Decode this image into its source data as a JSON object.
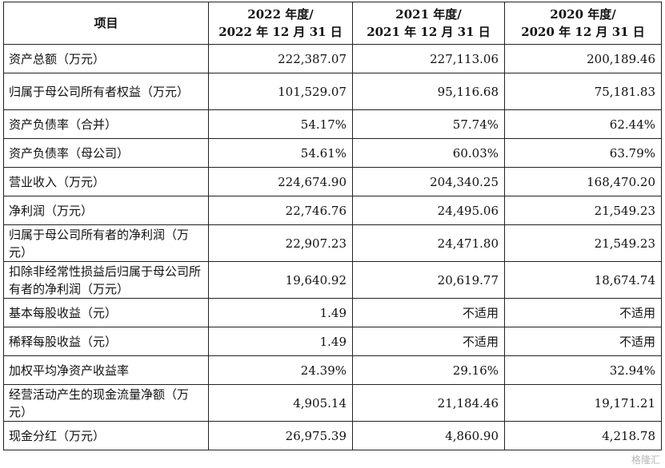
{
  "header": {
    "item": "项目",
    "y2022_line1": "2022 年度/",
    "y2022_line2": "2022 年 12 月 31 日",
    "y2021_line1": "2021 年度/",
    "y2021_line2": "2021 年 12 月 31 日",
    "y2020_line1": "2020 年度/",
    "y2020_line2": "2020 年 12 月 31 日"
  },
  "rows": [
    {
      "label": "资产总额（万元）",
      "v2022": "222,387.07",
      "v2021": "227,113.06",
      "v2020": "200,189.46"
    },
    {
      "label": "归属于母公司所有者权益（万元）",
      "v2022": "101,529.07",
      "v2021": "95,116.68",
      "v2020": "75,181.83"
    },
    {
      "label": "资产负债率（合并）",
      "v2022": "54.17%",
      "v2021": "57.74%",
      "v2020": "62.44%"
    },
    {
      "label": "资产负债率（母公司）",
      "v2022": "54.61%",
      "v2021": "60.03%",
      "v2020": "63.79%"
    },
    {
      "label": "营业收入（万元）",
      "v2022": "224,674.90",
      "v2021": "204,340.25",
      "v2020": "168,470.20"
    },
    {
      "label": "净利润（万元）",
      "v2022": "22,746.76",
      "v2021": "24,495.06",
      "v2020": "21,549.23"
    },
    {
      "label": "归属于母公司所有者的净利润（万元）",
      "v2022": "22,907.23",
      "v2021": "24,471.80",
      "v2020": "21,549.23"
    },
    {
      "label": "扣除非经常性损益后归属于母公司所有者的净利润（万元）",
      "v2022": "19,640.92",
      "v2021": "20,619.77",
      "v2020": "18,674.74"
    },
    {
      "label": "基本每股收益（元）",
      "v2022": "1.49",
      "v2021": "不适用",
      "v2020": "不适用"
    },
    {
      "label": "稀释每股收益（元）",
      "v2022": "1.49",
      "v2021": "不适用",
      "v2020": "不适用"
    },
    {
      "label": "加权平均净资产收益率",
      "v2022": "24.39%",
      "v2021": "29.16%",
      "v2020": "32.94%"
    },
    {
      "label": "经营活动产生的现金流量净额（万元）",
      "v2022": "4,905.14",
      "v2021": "21,184.46",
      "v2020": "19,171.21"
    },
    {
      "label": "现金分红（万元）",
      "v2022": "26,975.39",
      "v2021": "4,860.90",
      "v2020": "4,218.78"
    }
  ],
  "watermark": "格隆汇"
}
